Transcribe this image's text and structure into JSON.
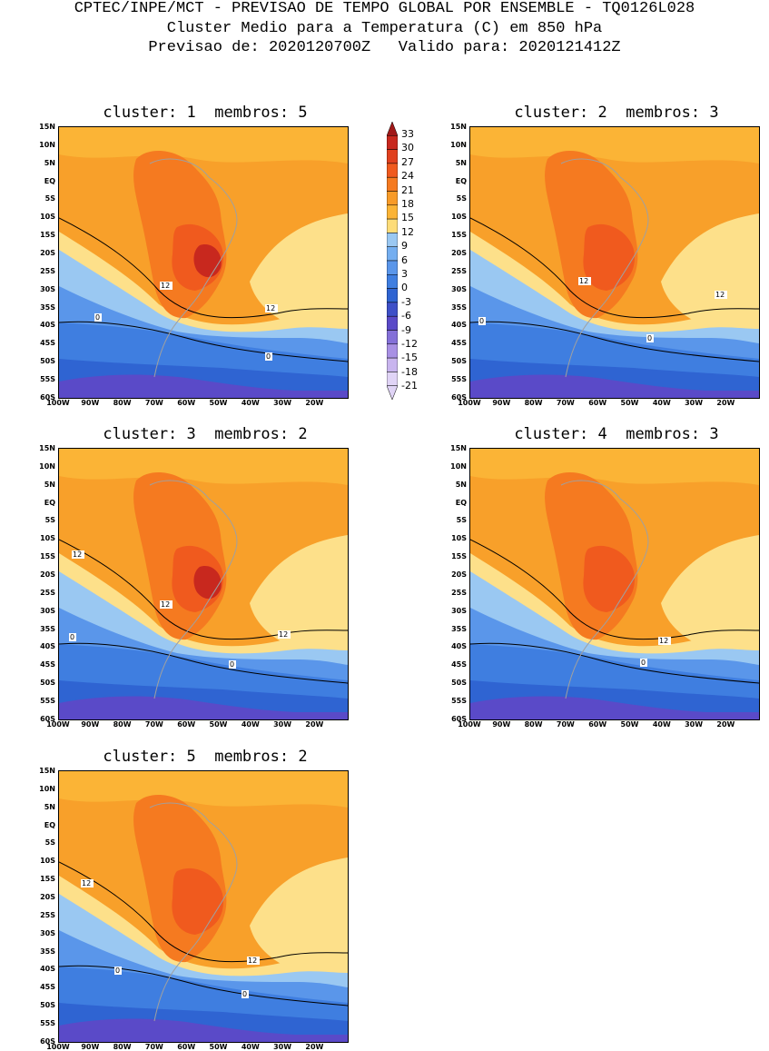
{
  "header": {
    "line1": "CPTEC/INPE/MCT - PREVISAO DE TEMPO GLOBAL POR ENSEMBLE - TQ0126L028",
    "line2": "Cluster Medio para a Temperatura (C) em 850 hPa",
    "line3": "Previsao de: 2020120700Z   Valido para: 2020121412Z"
  },
  "panels": [
    {
      "title": "cluster: 1  membros: 5",
      "labels": [
        "12",
        "12",
        "0",
        "0"
      ]
    },
    {
      "title": "cluster: 2  membros: 3",
      "labels": [
        "12",
        "12",
        "0",
        "0"
      ]
    },
    {
      "title": "cluster: 3  membros: 2",
      "labels": [
        "12",
        "12",
        "12",
        "0",
        "0"
      ]
    },
    {
      "title": "cluster: 4  membros: 3",
      "labels": [
        "12",
        "0"
      ]
    },
    {
      "title": "cluster: 5  membros: 2",
      "labels": [
        "12",
        "12",
        "0",
        "0"
      ]
    }
  ],
  "y_ticks": [
    "15N",
    "10N",
    "5N",
    "EQ",
    "5S",
    "10S",
    "15S",
    "20S",
    "25S",
    "30S",
    "35S",
    "40S",
    "45S",
    "50S",
    "55S",
    "60S"
  ],
  "x_ticks": [
    "100W",
    "90W",
    "80W",
    "70W",
    "60W",
    "50W",
    "40W",
    "30W",
    "20W"
  ],
  "colorbar": {
    "labels": [
      "33",
      "30",
      "27",
      "24",
      "21",
      "18",
      "15",
      "12",
      "9",
      "6",
      "3",
      "0",
      "-3",
      "-6",
      "-9",
      "-12",
      "-15",
      "-18",
      "-21"
    ],
    "colors": [
      "#a01818",
      "#c8281e",
      "#e0401e",
      "#f05a1e",
      "#f57a20",
      "#f89b28",
      "#fbb436",
      "#fddc78",
      "#9ac8f2",
      "#74aef0",
      "#5a96ea",
      "#3f7ee0",
      "#2f64d2",
      "#3e50c8",
      "#5a4ac8",
      "#8470d8",
      "#a890e4",
      "#c8b4ee",
      "#e0d4f6"
    ]
  },
  "colors": {
    "deep_red": "#c8281e",
    "red": "#f05a1e",
    "orange_red": "#f57a20",
    "orange": "#f8a02a",
    "light_orange": "#fbb436",
    "yellow": "#fde08a",
    "light_blue": "#9ac8f2",
    "blue": "#5a96ea",
    "dark_blue": "#3f7ee0",
    "deep_blue": "#2f64d2",
    "violet": "#5a4ac8"
  }
}
